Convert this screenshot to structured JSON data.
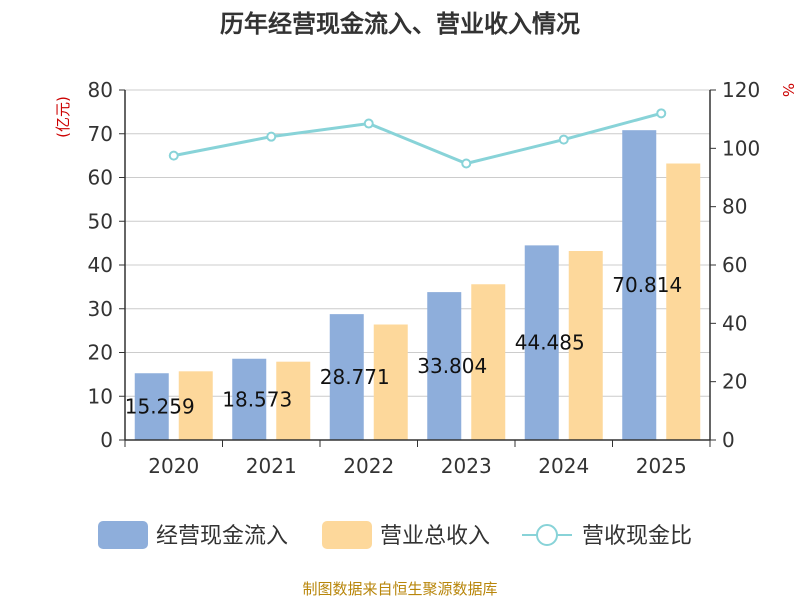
{
  "chart_data": {
    "type": "bar",
    "title": "历年经营现金流入、营业收入情况",
    "categories": [
      "2020",
      "2021",
      "2022",
      "2023",
      "2024",
      "2025"
    ],
    "left_unit": "(亿元)",
    "right_unit": "%",
    "left_ylim": [
      0,
      80
    ],
    "left_ticks": [
      0,
      10,
      20,
      30,
      40,
      50,
      60,
      70,
      80
    ],
    "right_ylim": [
      0,
      120
    ],
    "right_ticks": [
      0,
      20,
      40,
      60,
      80,
      100,
      120
    ],
    "series": [
      {
        "name": "经营现金流入",
        "type": "bar",
        "axis": "left",
        "color": "#8eaedb",
        "values": [
          15.259,
          18.573,
          28.771,
          33.804,
          44.485,
          70.814
        ],
        "labels": [
          "15.259",
          "18.573",
          "28.771",
          "33.804",
          "44.485",
          "70.814"
        ]
      },
      {
        "name": "营业总收入",
        "type": "bar",
        "axis": "left",
        "color": "#fdd89b",
        "values": [
          15.7,
          17.9,
          26.4,
          35.6,
          43.2,
          63.2
        ]
      },
      {
        "name": "营收现金比",
        "type": "line",
        "axis": "right",
        "color": "#88d3d8",
        "values": [
          97.5,
          104,
          108.5,
          94.8,
          103,
          112
        ]
      }
    ],
    "grid": true,
    "legend_position": "bottom"
  },
  "source": "制图数据来自恒生聚源数据库"
}
